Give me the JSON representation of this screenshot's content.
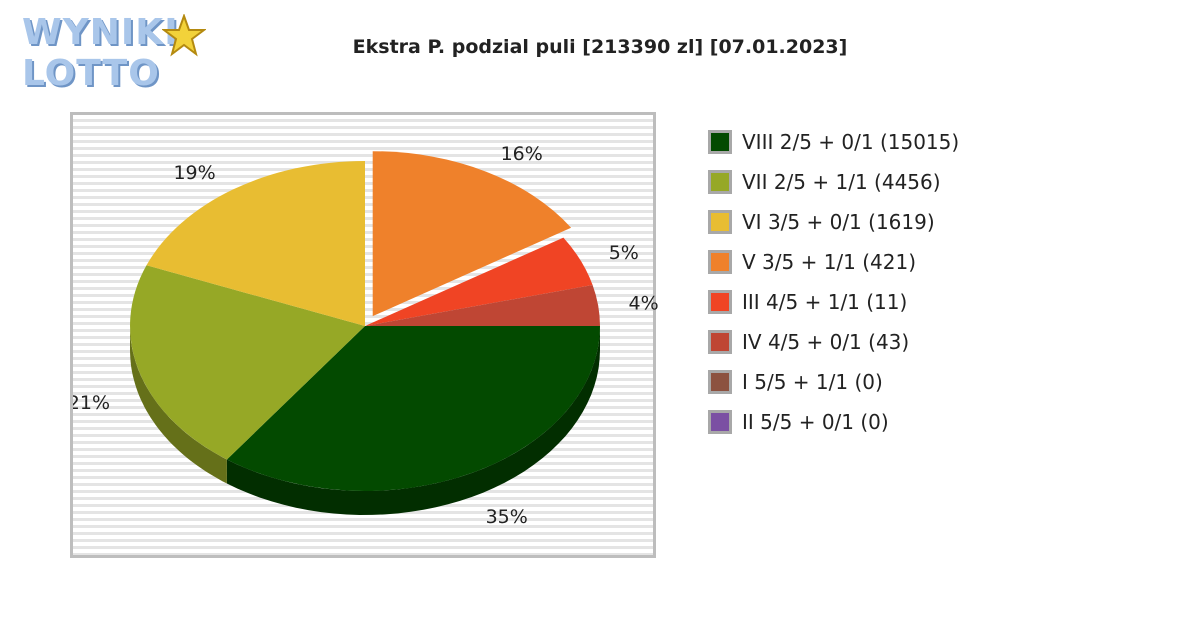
{
  "logo": {
    "text": "WYNIKI LOTTO"
  },
  "chart_data": {
    "type": "pie",
    "title": "Ekstra P. podzial puli [213390 zl] [07.01.2023]",
    "slices": [
      {
        "label": "VIII 2/5 + 0/1 (15015)",
        "percent": 35,
        "pct_label": "35%",
        "color": "#034a00",
        "side_color": "#022e00"
      },
      {
        "label": "VII 2/5 + 1/1 (4456)",
        "percent": 21,
        "pct_label": "21%",
        "color": "#96a826",
        "side_color": "#657019"
      },
      {
        "label": "VI 3/5 + 0/1 (1619)",
        "percent": 19,
        "pct_label": "19%",
        "color": "#e8bd32",
        "side_color": "#a48422"
      },
      {
        "label": "V 3/5 + 1/1 (421)",
        "percent": 16,
        "pct_label": "16%",
        "color": "#ef812b",
        "side_color": "#a9591c"
      },
      {
        "label": "III 4/5 + 1/1 (11)",
        "percent": 5,
        "pct_label": "5%",
        "color": "#f04424",
        "side_color": "#a82e18"
      },
      {
        "label": "IV 4/5 + 0/1 (43)",
        "percent": 4,
        "pct_label": "4%",
        "color": "#bf4634",
        "side_color": "#853024"
      },
      {
        "label": "I 5/5 + 1/1 (0)",
        "percent": 0,
        "pct_label": "",
        "color": "#8c5240",
        "side_color": "#62392c"
      },
      {
        "label": "II 5/5 + 0/1 (0)",
        "percent": 0,
        "pct_label": "",
        "color": "#7b50a3",
        "side_color": "#563872"
      }
    ]
  }
}
